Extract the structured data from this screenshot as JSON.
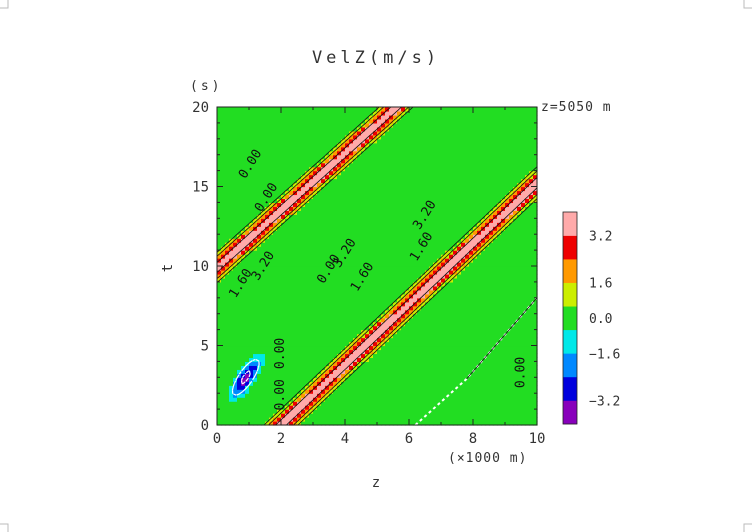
{
  "chart_data": {
    "type": "contour",
    "title": "VelZ(m/s)",
    "xlabel": "z",
    "x_unit": "(×1000 m)",
    "ylabel": "t",
    "y_unit": "(s)",
    "annotation": "z=5050 m",
    "xlim": [
      0,
      10
    ],
    "ylim": [
      0,
      20
    ],
    "x_ticks": [
      "0",
      "2",
      "4",
      "6",
      "8",
      "10"
    ],
    "y_ticks": [
      "0",
      "5",
      "10",
      "15",
      "20"
    ],
    "contour_labels": [
      "0.00",
      "0.00",
      "1.60",
      "3.20",
      "0.00",
      "1.60",
      "3.20",
      "3.20",
      "1.60",
      "0.00",
      "0.00",
      "0.00"
    ],
    "colorbar": {
      "labels": [
        "3.2",
        "1.6",
        "0.0",
        "−1.6",
        "−3.2"
      ],
      "levels": [
        -4.0,
        -3.2,
        -2.4,
        -1.6,
        -0.8,
        0.8,
        1.6,
        2.4,
        3.2,
        4.0
      ],
      "colors": [
        "#8800bb",
        "#0000dd",
        "#0088ff",
        "#00e8e8",
        "#22dd22",
        "#ccee00",
        "#ff9900",
        "#ee0000",
        "#ffaaaa"
      ]
    },
    "features": [
      {
        "kind": "band",
        "sign": "positive",
        "z_at_t0": -5.5,
        "z_at_t20": 5.6,
        "peak": 3.8,
        "start_t": 7.0
      },
      {
        "kind": "band",
        "sign": "positive",
        "z_at_t0": 2.0,
        "z_at_t20": 12.5,
        "peak": 3.8
      },
      {
        "kind": "blob",
        "sign": "negative",
        "z": 0.9,
        "t": 3.0,
        "peak": -3.6
      },
      {
        "kind": "region",
        "sign": "zero",
        "vertices": [
          [
            6.2,
            0
          ],
          [
            7.8,
            2.9
          ],
          [
            10,
            8.0
          ],
          [
            10,
            0
          ]
        ]
      }
    ]
  }
}
